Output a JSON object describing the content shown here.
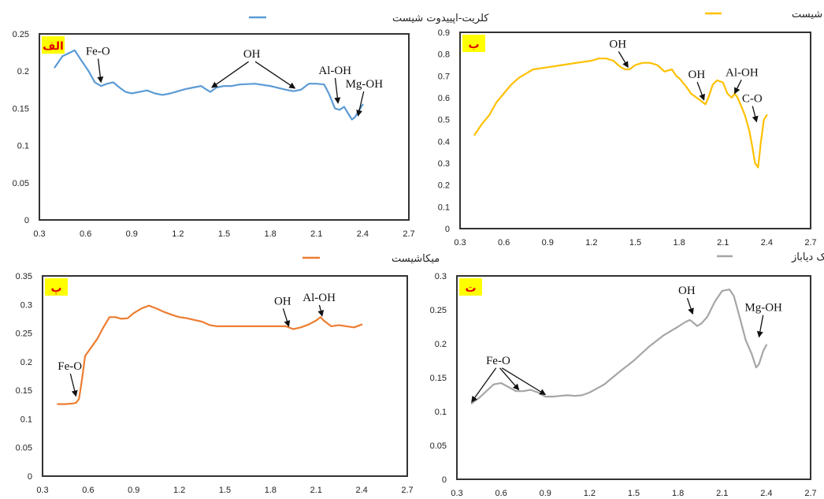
{
  "chart_data": [
    {
      "type": "line",
      "panel_label": "الف",
      "series": [
        {
          "name": "کلریت-اپییدوت شیست",
          "color": "#5b9bd5",
          "x": [
            0.4,
            0.45,
            0.5,
            0.53,
            0.57,
            0.62,
            0.66,
            0.7,
            0.74,
            0.78,
            0.82,
            0.86,
            0.9,
            0.95,
            1.0,
            1.05,
            1.1,
            1.15,
            1.2,
            1.25,
            1.3,
            1.35,
            1.38,
            1.41,
            1.45,
            1.5,
            1.55,
            1.6,
            1.7,
            1.8,
            1.9,
            1.95,
            2.0,
            2.05,
            2.1,
            2.15,
            2.18,
            2.22,
            2.25,
            2.28,
            2.3,
            2.33,
            2.35,
            2.37,
            2.4
          ],
          "y": [
            0.205,
            0.22,
            0.225,
            0.228,
            0.215,
            0.2,
            0.185,
            0.18,
            0.183,
            0.185,
            0.178,
            0.172,
            0.17,
            0.172,
            0.174,
            0.17,
            0.168,
            0.17,
            0.173,
            0.176,
            0.178,
            0.18,
            0.176,
            0.172,
            0.178,
            0.18,
            0.18,
            0.182,
            0.183,
            0.18,
            0.175,
            0.173,
            0.175,
            0.183,
            0.183,
            0.182,
            0.17,
            0.15,
            0.148,
            0.152,
            0.145,
            0.135,
            0.138,
            0.145,
            0.155
          ]
        }
      ],
      "xlim": [
        0.3,
        2.7
      ],
      "ylim": [
        0,
        0.25
      ],
      "xticks": [
        "0.3",
        "0.6",
        "0.9",
        "1.2",
        "1.5",
        "1.8",
        "2.1",
        "2.4",
        "2.7"
      ],
      "yticks": [
        "0",
        "0.05",
        "0.1",
        "0.15",
        "0.2",
        "0.25"
      ],
      "legend_position": "top-right",
      "annotations": [
        {
          "text": "Fe-O",
          "x": 0.68,
          "y": 0.222,
          "arrows": [
            [
              0.7,
              0.185
            ]
          ]
        },
        {
          "text": "OH",
          "x": 1.68,
          "y": 0.218,
          "arrows": [
            [
              1.42,
              0.178
            ],
            [
              1.96,
              0.177
            ]
          ]
        },
        {
          "text": "Al-OH",
          "x": 2.22,
          "y": 0.196,
          "arrows": [
            [
              2.24,
              0.157
            ]
          ]
        },
        {
          "text": "Mg-OH",
          "x": 2.41,
          "y": 0.178,
          "arrows": [
            [
              2.37,
              0.14
            ]
          ]
        }
      ]
    },
    {
      "type": "line",
      "panel_label": "ب",
      "series": [
        {
          "name": "کالک شیست",
          "color": "#ffc000",
          "x": [
            0.4,
            0.45,
            0.5,
            0.55,
            0.6,
            0.65,
            0.7,
            0.75,
            0.8,
            0.9,
            1.0,
            1.1,
            1.2,
            1.25,
            1.3,
            1.35,
            1.4,
            1.43,
            1.46,
            1.5,
            1.55,
            1.6,
            1.65,
            1.7,
            1.75,
            1.78,
            1.8,
            1.85,
            1.88,
            1.92,
            1.96,
            1.98,
            2.0,
            2.03,
            2.06,
            2.1,
            2.13,
            2.16,
            2.18,
            2.2,
            2.22,
            2.25,
            2.28,
            2.3,
            2.32,
            2.34,
            2.36,
            2.38,
            2.4
          ],
          "y": [
            0.43,
            0.48,
            0.52,
            0.58,
            0.62,
            0.66,
            0.69,
            0.71,
            0.73,
            0.74,
            0.75,
            0.76,
            0.77,
            0.78,
            0.78,
            0.77,
            0.74,
            0.73,
            0.73,
            0.75,
            0.76,
            0.76,
            0.75,
            0.72,
            0.73,
            0.7,
            0.69,
            0.65,
            0.62,
            0.6,
            0.58,
            0.57,
            0.6,
            0.66,
            0.68,
            0.67,
            0.62,
            0.6,
            0.62,
            0.6,
            0.57,
            0.52,
            0.45,
            0.38,
            0.3,
            0.28,
            0.4,
            0.5,
            0.52
          ]
        }
      ],
      "xlim": [
        0.3,
        2.7
      ],
      "ylim": [
        0,
        0.9
      ],
      "xticks": [
        "0.3",
        "0.6",
        "0.9",
        "1.2",
        "1.5",
        "1.8",
        "2.1",
        "2.4",
        "2.7"
      ],
      "yticks": [
        "0",
        "0.1",
        "0.2",
        "0.3",
        "0.4",
        "0.5",
        "0.6",
        "0.7",
        "0.8",
        "0.9"
      ],
      "legend_position": "top-right",
      "annotations": [
        {
          "text": "OH",
          "x": 1.38,
          "y": 0.83,
          "arrows": [
            [
              1.45,
              0.74
            ]
          ]
        },
        {
          "text": "OH",
          "x": 1.92,
          "y": 0.69,
          "arrows": [
            [
              1.97,
              0.59
            ]
          ]
        },
        {
          "text": "Al-OH",
          "x": 2.23,
          "y": 0.7,
          "arrows": [
            [
              2.18,
              0.62
            ]
          ]
        },
        {
          "text": "C-O",
          "x": 2.3,
          "y": 0.58,
          "arrows": [
            [
              2.33,
              0.49
            ]
          ]
        }
      ]
    },
    {
      "type": "line",
      "panel_label": "پ",
      "series": [
        {
          "name": "میکاشیست",
          "color": "#ed7d31",
          "x": [
            0.4,
            0.45,
            0.5,
            0.52,
            0.54,
            0.56,
            0.58,
            0.62,
            0.66,
            0.7,
            0.74,
            0.78,
            0.82,
            0.86,
            0.9,
            0.95,
            1.0,
            1.05,
            1.1,
            1.15,
            1.2,
            1.25,
            1.3,
            1.35,
            1.4,
            1.45,
            1.5,
            1.6,
            1.7,
            1.8,
            1.9,
            1.95,
            2.0,
            2.05,
            2.1,
            2.13,
            2.15,
            2.2,
            2.25,
            2.3,
            2.35,
            2.4
          ],
          "y": [
            0.126,
            0.126,
            0.127,
            0.128,
            0.135,
            0.17,
            0.21,
            0.225,
            0.24,
            0.26,
            0.278,
            0.278,
            0.275,
            0.276,
            0.285,
            0.293,
            0.298,
            0.293,
            0.287,
            0.282,
            0.278,
            0.276,
            0.273,
            0.27,
            0.264,
            0.262,
            0.262,
            0.262,
            0.262,
            0.262,
            0.262,
            0.257,
            0.26,
            0.265,
            0.272,
            0.278,
            0.272,
            0.262,
            0.264,
            0.262,
            0.26,
            0.265
          ]
        }
      ],
      "xlim": [
        0.3,
        2.7
      ],
      "ylim": [
        0,
        0.35
      ],
      "xticks": [
        "0.3",
        "0.6",
        "0.9",
        "1.2",
        "1.5",
        "1.8",
        "2.1",
        "2.4",
        "2.7"
      ],
      "yticks": [
        "0",
        "0.05",
        "0.1",
        "0.15",
        "0.2",
        "0.25",
        "0.3",
        "0.35"
      ],
      "legend_position": "top-right",
      "annotations": [
        {
          "text": "Fe-O",
          "x": 0.48,
          "y": 0.186,
          "arrows": [
            [
              0.52,
              0.14
            ]
          ]
        },
        {
          "text": "OH",
          "x": 1.88,
          "y": 0.3,
          "arrows": [
            [
              1.92,
              0.262
            ]
          ]
        },
        {
          "text": "Al-OH",
          "x": 2.12,
          "y": 0.306,
          "arrows": [
            [
              2.14,
              0.28
            ]
          ]
        }
      ]
    },
    {
      "type": "line",
      "panel_label": "ت",
      "series": [
        {
          "name": "دایک دیاباز",
          "color": "#a6a6a6",
          "x": [
            0.4,
            0.45,
            0.5,
            0.55,
            0.6,
            0.65,
            0.7,
            0.75,
            0.8,
            0.85,
            0.9,
            0.95,
            1.0,
            1.05,
            1.1,
            1.15,
            1.2,
            1.3,
            1.4,
            1.5,
            1.6,
            1.7,
            1.8,
            1.85,
            1.88,
            1.9,
            1.93,
            1.96,
            2.0,
            2.05,
            2.1,
            2.15,
            2.18,
            2.22,
            2.26,
            2.3,
            2.33,
            2.35,
            2.38,
            2.4
          ],
          "y": [
            0.112,
            0.12,
            0.13,
            0.14,
            0.142,
            0.136,
            0.13,
            0.13,
            0.132,
            0.128,
            0.122,
            0.122,
            0.123,
            0.124,
            0.123,
            0.124,
            0.128,
            0.14,
            0.158,
            0.175,
            0.195,
            0.212,
            0.225,
            0.232,
            0.235,
            0.232,
            0.226,
            0.23,
            0.24,
            0.262,
            0.278,
            0.28,
            0.27,
            0.238,
            0.205,
            0.185,
            0.165,
            0.17,
            0.19,
            0.198
          ]
        }
      ],
      "xlim": [
        0.3,
        2.7
      ],
      "ylim": [
        0,
        0.3
      ],
      "xticks": [
        "0.3",
        "0.6",
        "0.9",
        "1.2",
        "1.5",
        "1.8",
        "2.1",
        "2.4",
        "2.7"
      ],
      "yticks": [
        "0",
        "0.05",
        "0.1",
        "0.15",
        "0.2",
        "0.25",
        "0.3"
      ],
      "legend_position": "top-right",
      "annotations": [
        {
          "text": "Fe-O",
          "x": 0.58,
          "y": 0.17,
          "arrows": [
            [
              0.4,
              0.114
            ],
            [
              0.72,
              0.132
            ],
            [
              0.9,
              0.125
            ]
          ]
        },
        {
          "text": "OH",
          "x": 1.86,
          "y": 0.273,
          "arrows": [
            [
              1.9,
              0.244
            ]
          ]
        },
        {
          "text": "Mg-OH",
          "x": 2.38,
          "y": 0.248,
          "arrows": [
            [
              2.35,
              0.21
            ]
          ]
        }
      ]
    }
  ]
}
